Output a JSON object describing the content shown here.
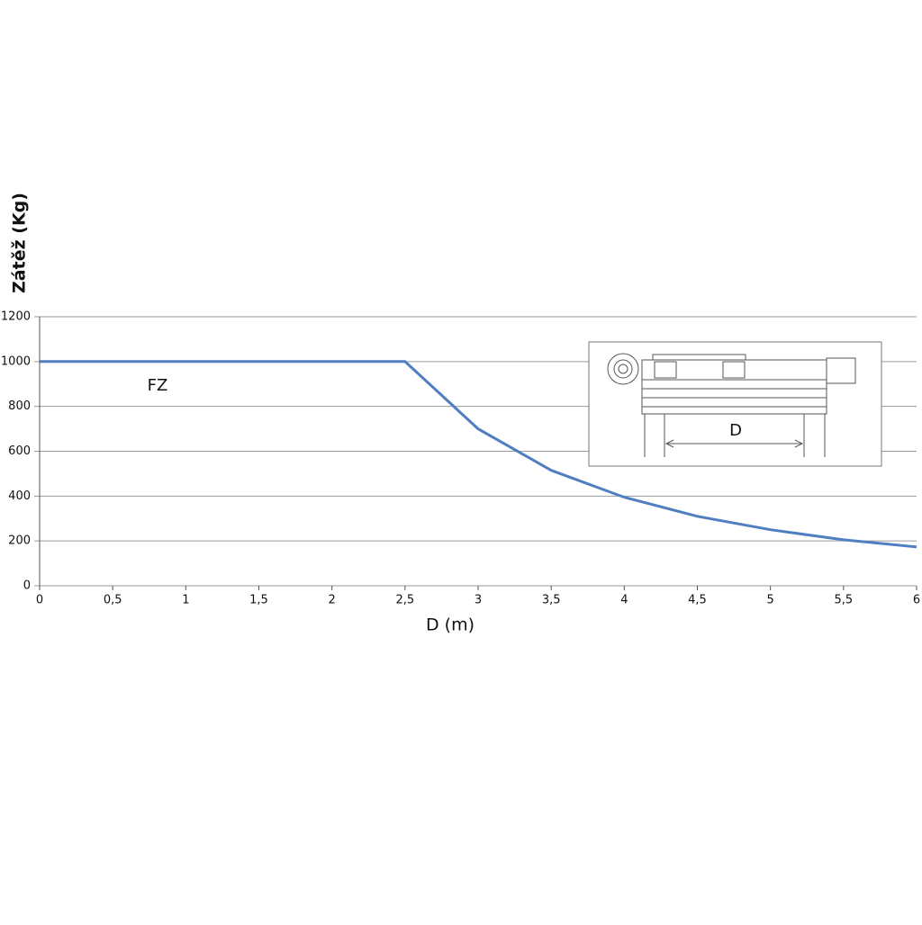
{
  "chart_data": {
    "type": "line",
    "y_label": "Zátěž (Kg)",
    "x_label": "D (m)",
    "x": [
      0,
      2.5,
      3,
      3.5,
      4,
      4.5,
      5,
      5.5,
      6
    ],
    "series": [
      {
        "name": "FZ",
        "color": "#4f7fc0",
        "values": [
          1000,
          1000,
          700,
          515,
          395,
          310,
          250,
          205,
          173
        ]
      }
    ],
    "xlim": [
      0,
      6
    ],
    "xticks": [
      0,
      {
        "value": 0.5,
        "label": "0,5"
      },
      1,
      {
        "value": 1.5,
        "label": "1,5"
      },
      2,
      {
        "value": 2.5,
        "label": "2,5"
      },
      3,
      {
        "value": 3.5,
        "label": "3,5"
      },
      4,
      {
        "value": 4.5,
        "label": "4,5"
      },
      5,
      {
        "value": 5.5,
        "label": "5,5"
      },
      6
    ],
    "ylim": [
      0,
      1200
    ],
    "yticks": [
      0,
      200,
      400,
      600,
      800,
      1000,
      1200
    ],
    "grid": true,
    "inset_label": "D"
  }
}
